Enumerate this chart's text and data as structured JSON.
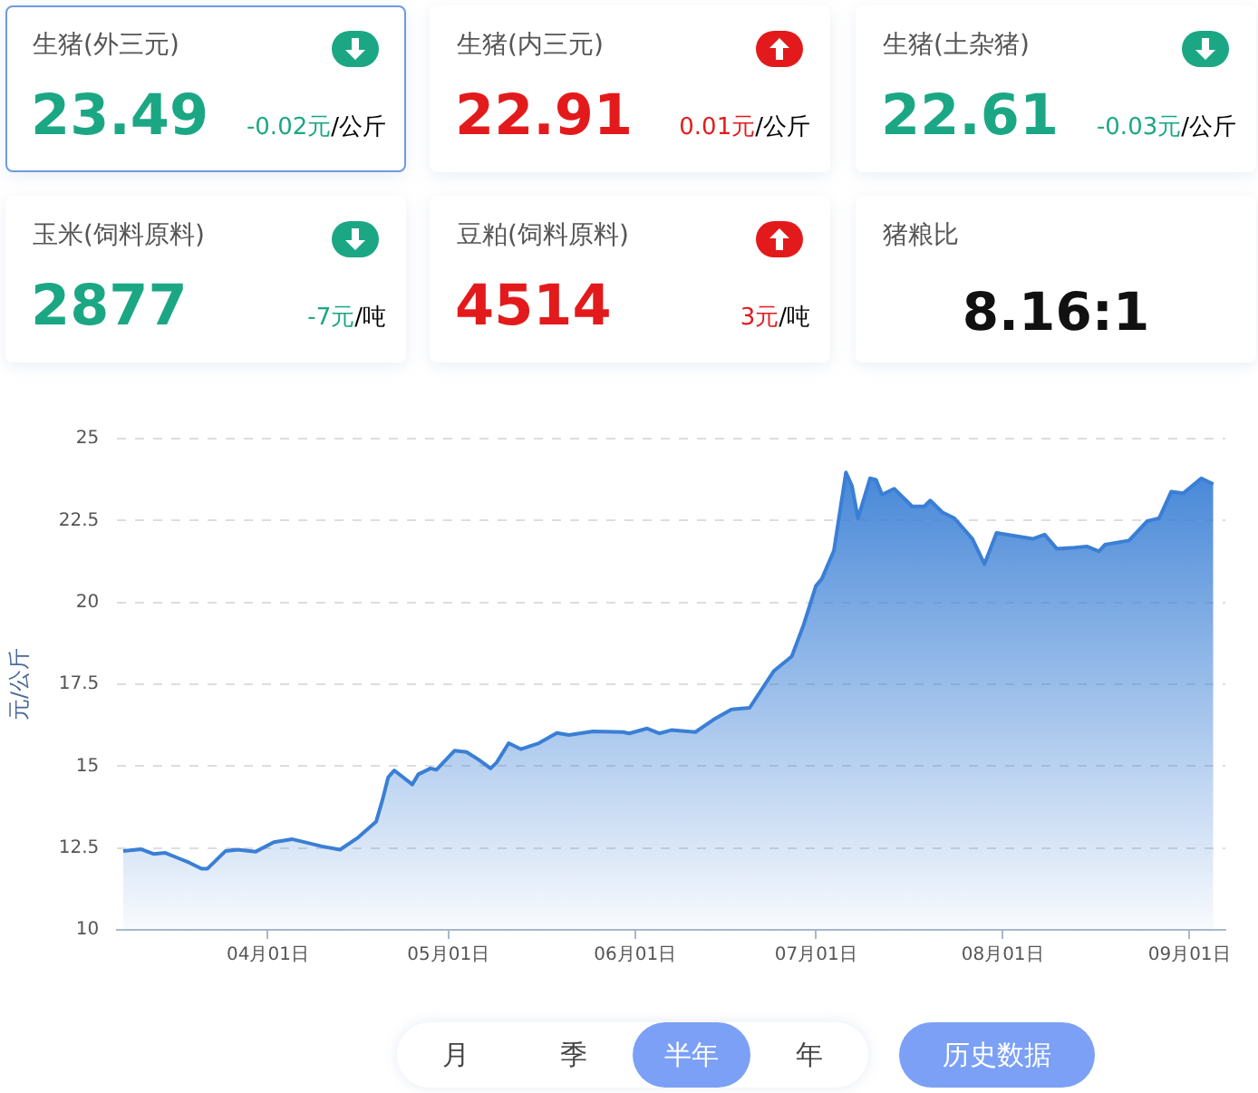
{
  "chart_data": [
    {
      "type": "other",
      "title": "生猪(外三元)",
      "annotations": [
        "23.49",
        "-0.02元",
        "/公斤"
      ],
      "color": "#1ba784"
    },
    {
      "type": "other",
      "title": "生猪(内三元)",
      "annotations": [
        "22.91",
        "0.01元",
        "/公斤"
      ],
      "color": "#e31a1c"
    },
    {
      "type": "other",
      "title": "生猪(土杂猪)",
      "annotations": [
        "22.61",
        "-0.03元",
        "/公斤"
      ],
      "color": "#1ba784"
    },
    {
      "type": "other",
      "title": "玉米(饲料原料)",
      "annotations": [
        "2877",
        "-7元",
        "/吨"
      ],
      "color": "#1ba784"
    },
    {
      "type": "other",
      "title": "豆粕(饲料原料)",
      "annotations": [
        "4514",
        "3元",
        "/吨"
      ],
      "color": "#e31a1c"
    },
    {
      "type": "other",
      "title": "猪粮比",
      "annotations": [
        "8.16:1"
      ],
      "color": "#111111"
    },
    {
      "type": "area",
      "ylabel": "元/公斤",
      "color": "#3a7fd5",
      "grid": "y",
      "x": [
        "--03-08",
        "--03-11",
        "--03-13",
        "--03-15",
        "--03-17",
        "--03-19",
        "--03-21",
        "--03-22",
        "--03-25",
        "--03-27",
        "--03-30",
        "--04-02",
        "--04-05",
        "--04-08",
        "--04-10",
        "--04-13",
        "--04-16",
        "--04-19",
        "--04-20",
        "--04-21",
        "--04-22",
        "--04-25",
        "--04-26",
        "--04-28",
        "--04-29",
        "--05-02",
        "--05-04",
        "--05-06",
        "--05-08",
        "--05-09",
        "--05-11",
        "--05-13",
        "--05-16",
        "--05-19",
        "--05-21",
        "--05-25",
        "--05-30",
        "--05-31",
        "--06-03",
        "--06-05",
        "--06-07",
        "--06-11",
        "--06-14",
        "--06-17",
        "--06-20",
        "--06-24",
        "--06-27",
        "--06-29",
        "--07-01",
        "--07-02",
        "--07-04",
        "--07-06",
        "--07-07",
        "--07-08",
        "--07-10",
        "--07-11",
        "--07-12",
        "--07-14",
        "--07-17",
        "--07-19",
        "--07-20",
        "--07-22",
        "--07-24",
        "--07-27",
        "--07-29",
        "--07-31",
        "--08-03",
        "--08-06",
        "--08-08",
        "--08-10",
        "--08-13",
        "--08-15",
        "--08-17",
        "--08-18",
        "--08-22",
        "--08-25",
        "--08-27",
        "--08-29",
        "--08-31",
        "--09-03",
        "--09-05"
      ],
      "values": [
        12.41,
        12.46,
        12.32,
        12.35,
        12.2,
        12.05,
        11.87,
        11.87,
        12.41,
        12.45,
        12.39,
        12.68,
        12.77,
        12.64,
        12.55,
        12.45,
        12.82,
        13.31,
        13.94,
        14.66,
        14.87,
        14.44,
        14.75,
        14.93,
        14.89,
        15.47,
        15.43,
        15.2,
        14.93,
        15.11,
        15.7,
        15.52,
        15.7,
        16.01,
        15.95,
        16.06,
        16.04,
        16.0,
        16.15,
        16.0,
        16.1,
        16.04,
        16.42,
        16.73,
        16.78,
        17.9,
        18.35,
        19.33,
        20.5,
        20.72,
        21.58,
        23.97,
        23.56,
        22.57,
        23.79,
        23.74,
        23.29,
        23.47,
        22.93,
        22.93,
        23.11,
        22.75,
        22.57,
        21.94,
        21.17,
        22.12,
        22.03,
        21.94,
        22.07,
        21.64,
        21.67,
        21.71,
        21.56,
        21.76,
        21.89,
        22.48,
        22.57,
        23.38,
        23.33,
        23.79,
        23.61
      ],
      "xlim": [
        "--03-07",
        "--09-07"
      ],
      "xticks": [
        {
          "value": "--04-01",
          "label": "04月01日"
        },
        {
          "value": "--05-01",
          "label": "05月01日"
        },
        {
          "value": "--06-01",
          "label": "06月01日"
        },
        {
          "value": "--07-01",
          "label": "07月01日"
        },
        {
          "value": "--08-01",
          "label": "08月01日"
        },
        {
          "value": "--09-01",
          "label": "09月01日"
        }
      ],
      "ylim": [
        10,
        25
      ],
      "yticks": [
        10,
        12.5,
        15,
        17.5,
        20,
        22.5,
        25
      ]
    },
    {
      "type": "other",
      "annotations": [
        "月",
        "季",
        "半年",
        "年",
        "历史数据"
      ]
    }
  ]
}
